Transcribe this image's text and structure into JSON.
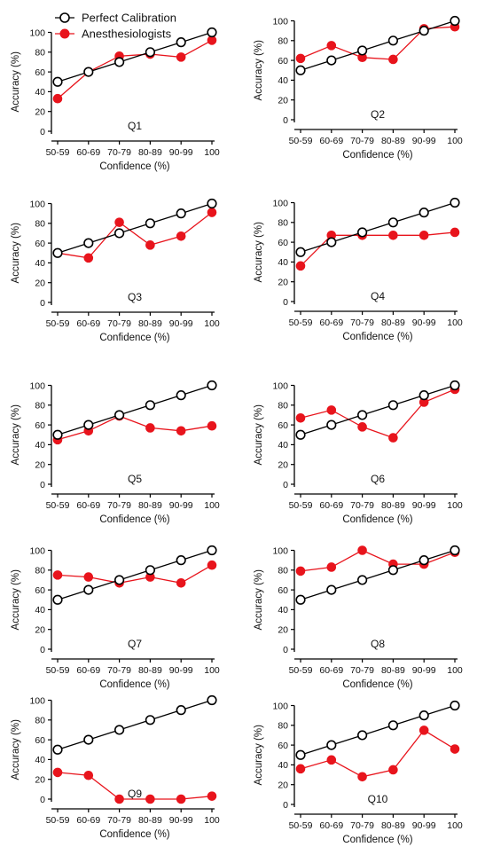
{
  "legend": {
    "perfect_label": "Perfect Calibration",
    "anesth_label": "Anesthesiologists"
  },
  "colors": {
    "perfect": "#000000",
    "anesthesiologists": "#e8141c",
    "axis": "#000000"
  },
  "chart_data": [
    {
      "type": "line",
      "title": "Q1",
      "xlabel": "Confidence (%)",
      "ylabel": "Accuracy (%)",
      "categories": [
        "50-59",
        "60-69",
        "70-79",
        "80-89",
        "90-99",
        "100"
      ],
      "ylim": [
        0,
        100
      ],
      "yticks": [
        0,
        20,
        40,
        60,
        80,
        100
      ],
      "grid": false,
      "legend": "top-left",
      "series": [
        {
          "name": "Perfect Calibration",
          "marker": "open-circle",
          "values": [
            50,
            60,
            70,
            80,
            90,
            100
          ]
        },
        {
          "name": "Anesthesiologists",
          "marker": "filled-circle",
          "values": [
            33,
            60,
            76,
            78,
            75,
            92
          ]
        }
      ]
    },
    {
      "type": "line",
      "title": "Q2",
      "xlabel": "Confidence (%)",
      "ylabel": "Accuracy (%)",
      "categories": [
        "50-59",
        "60-69",
        "70-79",
        "80-89",
        "90-99",
        "100"
      ],
      "ylim": [
        0,
        100
      ],
      "yticks": [
        0,
        20,
        40,
        60,
        80,
        100
      ],
      "grid": false,
      "series": [
        {
          "name": "Perfect Calibration",
          "marker": "open-circle",
          "values": [
            50,
            60,
            70,
            80,
            90,
            100
          ]
        },
        {
          "name": "Anesthesiologists",
          "marker": "filled-circle",
          "values": [
            62,
            75,
            63,
            61,
            92,
            94
          ]
        }
      ]
    },
    {
      "type": "line",
      "title": "Q3",
      "xlabel": "Confidence (%)",
      "ylabel": "Accuracy (%)",
      "categories": [
        "50-59",
        "60-69",
        "70-79",
        "80-89",
        "90-99",
        "100"
      ],
      "ylim": [
        0,
        100
      ],
      "yticks": [
        0,
        20,
        40,
        60,
        80,
        100
      ],
      "grid": false,
      "series": [
        {
          "name": "Perfect Calibration",
          "marker": "open-circle",
          "values": [
            50,
            60,
            70,
            80,
            90,
            100
          ]
        },
        {
          "name": "Anesthesiologists",
          "marker": "filled-circle",
          "values": [
            50,
            45,
            81,
            58,
            67,
            91
          ]
        }
      ]
    },
    {
      "type": "line",
      "title": "Q4",
      "xlabel": "Confidence (%)",
      "ylabel": "Accuracy (%)",
      "categories": [
        "50-59",
        "60-69",
        "70-79",
        "80-89",
        "90-99",
        "100"
      ],
      "ylim": [
        0,
        100
      ],
      "yticks": [
        0,
        20,
        40,
        60,
        80,
        100
      ],
      "grid": false,
      "series": [
        {
          "name": "Perfect Calibration",
          "marker": "open-circle",
          "values": [
            50,
            60,
            70,
            80,
            90,
            100
          ]
        },
        {
          "name": "Anesthesiologists",
          "marker": "filled-circle",
          "values": [
            36,
            67,
            67,
            67,
            67,
            70
          ]
        }
      ]
    },
    {
      "type": "line",
      "title": "Q5",
      "xlabel": "Confidence (%)",
      "ylabel": "Accuracy (%)",
      "categories": [
        "50-59",
        "60-69",
        "70-79",
        "80-89",
        "90-99",
        "100"
      ],
      "ylim": [
        0,
        100
      ],
      "yticks": [
        0,
        20,
        40,
        60,
        80,
        100
      ],
      "grid": false,
      "series": [
        {
          "name": "Perfect Calibration",
          "marker": "open-circle",
          "values": [
            50,
            60,
            70,
            80,
            90,
            100
          ]
        },
        {
          "name": "Anesthesiologists",
          "marker": "filled-circle",
          "values": [
            45,
            54,
            69,
            57,
            54,
            59
          ]
        }
      ]
    },
    {
      "type": "line",
      "title": "Q6",
      "xlabel": "Confidence (%)",
      "ylabel": "Accuracy (%)",
      "categories": [
        "50-59",
        "60-69",
        "70-79",
        "80-89",
        "90-99",
        "100"
      ],
      "ylim": [
        0,
        100
      ],
      "yticks": [
        0,
        20,
        40,
        60,
        80,
        100
      ],
      "grid": false,
      "series": [
        {
          "name": "Perfect Calibration",
          "marker": "open-circle",
          "values": [
            50,
            60,
            70,
            80,
            90,
            100
          ]
        },
        {
          "name": "Anesthesiologists",
          "marker": "filled-circle",
          "values": [
            67,
            75,
            58,
            47,
            83,
            96
          ]
        }
      ]
    },
    {
      "type": "line",
      "title": "Q7",
      "xlabel": "Confidence (%)",
      "ylabel": "Accuracy (%)",
      "categories": [
        "50-59",
        "60-69",
        "70-79",
        "80-89",
        "90-99",
        "100"
      ],
      "ylim": [
        0,
        100
      ],
      "yticks": [
        0,
        20,
        40,
        60,
        80,
        100
      ],
      "grid": false,
      "series": [
        {
          "name": "Perfect Calibration",
          "marker": "open-circle",
          "values": [
            50,
            60,
            70,
            80,
            90,
            100
          ]
        },
        {
          "name": "Anesthesiologists",
          "marker": "filled-circle",
          "values": [
            75,
            73,
            67,
            73,
            67,
            85
          ]
        }
      ]
    },
    {
      "type": "line",
      "title": "Q8",
      "xlabel": "Confidence (%)",
      "ylabel": "Accuracy (%)",
      "categories": [
        "50-59",
        "60-69",
        "70-79",
        "80-89",
        "90-99",
        "100"
      ],
      "ylim": [
        0,
        100
      ],
      "yticks": [
        0,
        20,
        40,
        60,
        80,
        100
      ],
      "grid": false,
      "series": [
        {
          "name": "Perfect Calibration",
          "marker": "open-circle",
          "values": [
            50,
            60,
            70,
            80,
            90,
            100
          ]
        },
        {
          "name": "Anesthesiologists",
          "marker": "filled-circle",
          "values": [
            79,
            83,
            100,
            86,
            86,
            98
          ]
        }
      ]
    },
    {
      "type": "line",
      "title": "Q9",
      "xlabel": "Confidence (%)",
      "ylabel": "Accuracy (%)",
      "categories": [
        "50-59",
        "60-69",
        "70-79",
        "80-89",
        "90-99",
        "100"
      ],
      "ylim": [
        0,
        100
      ],
      "yticks": [
        0,
        20,
        40,
        60,
        80,
        100
      ],
      "grid": false,
      "series": [
        {
          "name": "Perfect Calibration",
          "marker": "open-circle",
          "values": [
            50,
            60,
            70,
            80,
            90,
            100
          ]
        },
        {
          "name": "Anesthesiologists",
          "marker": "filled-circle",
          "values": [
            27,
            24,
            0,
            0,
            0,
            3
          ]
        }
      ]
    },
    {
      "type": "line",
      "title": "Q10",
      "xlabel": "Confidence (%)",
      "ylabel": "Accuracy (%)",
      "categories": [
        "50-59",
        "60-69",
        "70-79",
        "80-89",
        "90-99",
        "100"
      ],
      "ylim": [
        0,
        100
      ],
      "yticks": [
        0,
        20,
        40,
        60,
        80,
        100
      ],
      "grid": false,
      "series": [
        {
          "name": "Perfect Calibration",
          "marker": "open-circle",
          "values": [
            50,
            60,
            70,
            80,
            90,
            100
          ]
        },
        {
          "name": "Anesthesiologists",
          "marker": "filled-circle",
          "values": [
            36,
            45,
            28,
            35,
            75,
            56
          ]
        }
      ]
    }
  ]
}
